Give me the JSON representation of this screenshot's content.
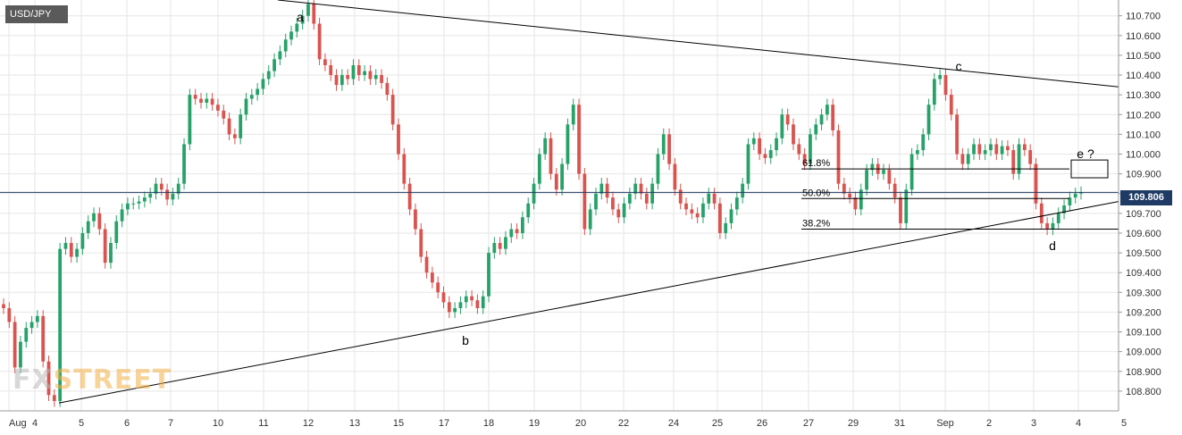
{
  "instrument": "USD/JPY",
  "current_price_label": "109.806",
  "watermark": {
    "part1": "FX",
    "part2": "STREET"
  },
  "colors": {
    "up": "#26a269",
    "down": "#d9534f",
    "grid": "#e6e6e6",
    "price_line": "#1f3a64",
    "trendline": "#000000",
    "accent": "#f3b24b"
  },
  "chart_data": {
    "type": "candlestick",
    "title": "",
    "xlabel": "",
    "ylabel": "",
    "ylim": [
      108.7,
      110.78
    ],
    "y_ticks": [
      "110.700",
      "110.600",
      "110.500",
      "110.400",
      "110.300",
      "110.200",
      "110.100",
      "110.000",
      "109.900",
      "109.800",
      "109.700",
      "109.600",
      "109.500",
      "109.400",
      "109.300",
      "109.200",
      "109.100",
      "109.000",
      "108.900",
      "108.800"
    ],
    "x_ticks": [
      "Aug",
      "4",
      "5",
      "6",
      "7",
      "10",
      "11",
      "12",
      "13",
      "15",
      "17",
      "18",
      "19",
      "20",
      "22",
      "24",
      "25",
      "26",
      "27",
      "29",
      "31",
      "Sep",
      "2",
      "3",
      "4",
      "5"
    ],
    "current_price": 109.806,
    "wave_labels": [
      "a",
      "b",
      "c",
      "d",
      "e ?"
    ],
    "wave_points": [
      {
        "label": "a",
        "date": "11",
        "price": 110.78
      },
      {
        "label": "b",
        "date": "17",
        "price": 109.12
      },
      {
        "label": "c",
        "date": "Sep 1",
        "price": 110.41
      },
      {
        "label": "d",
        "date": "4",
        "price": 109.6
      },
      {
        "label": "e ?",
        "date": "5",
        "price": 109.95
      }
    ],
    "trendlines": [
      {
        "name": "upper",
        "from": {
          "date": "11",
          "price": 110.78
        },
        "to": {
          "date": "5",
          "price": 110.34
        }
      },
      {
        "name": "lower",
        "from": {
          "date": "4",
          "price": 108.74
        },
        "to": {
          "date": "5",
          "price": 109.76
        }
      }
    ],
    "fib_levels": [
      {
        "label": "61.8%",
        "price": 109.925
      },
      {
        "label": "50.0%",
        "price": 109.775
      },
      {
        "label": "38.2%",
        "price": 109.62
      }
    ],
    "target_box": {
      "label": "e ?",
      "price_low": 109.88,
      "price_high": 109.97
    },
    "closes": [
      109.22,
      109.15,
      108.92,
      109.05,
      109.12,
      109.15,
      109.18,
      108.95,
      108.78,
      108.75,
      109.52,
      109.55,
      109.48,
      109.52,
      109.6,
      109.66,
      109.7,
      109.62,
      109.45,
      109.55,
      109.66,
      109.72,
      109.75,
      109.75,
      109.76,
      109.78,
      109.8,
      109.85,
      109.82,
      109.77,
      109.8,
      109.85,
      110.05,
      110.3,
      110.28,
      110.26,
      110.28,
      110.25,
      110.22,
      110.18,
      110.1,
      110.08,
      110.2,
      110.28,
      110.3,
      110.33,
      110.38,
      110.42,
      110.48,
      110.52,
      110.58,
      110.62,
      110.66,
      110.7,
      110.76,
      110.66,
      110.48,
      110.45,
      110.4,
      110.35,
      110.4,
      110.38,
      110.45,
      110.4,
      110.42,
      110.38,
      110.4,
      110.36,
      110.3,
      110.15,
      110.0,
      109.85,
      109.72,
      109.62,
      109.48,
      109.4,
      109.35,
      109.3,
      109.25,
      109.2,
      109.22,
      109.25,
      109.28,
      109.26,
      109.22,
      109.28,
      109.5,
      109.55,
      109.52,
      109.58,
      109.62,
      109.6,
      109.68,
      109.75,
      109.85,
      110.0,
      110.08,
      109.9,
      109.82,
      109.95,
      110.15,
      110.25,
      109.9,
      109.62,
      109.72,
      109.8,
      109.85,
      109.78,
      109.72,
      109.68,
      109.75,
      109.8,
      109.85,
      109.8,
      109.75,
      109.85,
      110.0,
      110.1,
      109.95,
      109.82,
      109.75,
      109.72,
      109.7,
      109.68,
      109.75,
      109.8,
      109.75,
      109.6,
      109.65,
      109.72,
      109.78,
      109.85,
      110.05,
      110.08,
      110.0,
      109.98,
      110.02,
      110.08,
      110.2,
      110.15,
      110.05,
      110.0,
      109.95,
      110.1,
      110.15,
      110.2,
      110.25,
      110.12,
      109.85,
      109.8,
      109.78,
      109.72,
      109.82,
      109.92,
      109.95,
      109.9,
      109.92,
      109.85,
      109.78,
      109.65,
      109.82,
      110.0,
      110.02,
      110.1,
      110.25,
      110.38,
      110.4,
      110.3,
      110.2,
      110.0,
      109.95,
      110.0,
      110.05,
      110.0,
      110.02,
      110.05,
      110.0,
      110.04,
      110.02,
      109.9,
      110.05,
      110.02,
      109.95,
      109.75,
      109.65,
      109.62,
      109.65,
      109.7,
      109.74,
      109.78,
      109.8,
      109.806
    ]
  }
}
